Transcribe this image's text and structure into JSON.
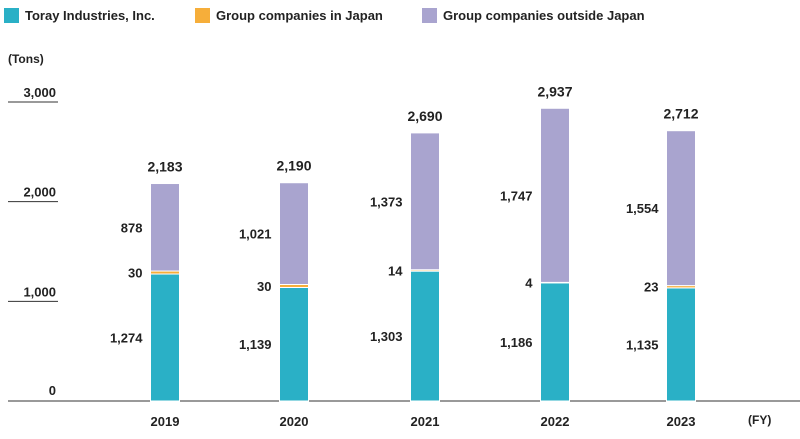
{
  "chart_data": {
    "type": "bar",
    "stacked": true,
    "unit_label": "(Tons)",
    "x_unit_label": "(FY)",
    "categories": [
      "2019",
      "2020",
      "2021",
      "2022",
      "2023"
    ],
    "series": [
      {
        "name": "Toray Industries, Inc.",
        "color": "#2ab0c6",
        "values": [
          1274,
          1139,
          1303,
          1186,
          1135
        ],
        "labels": [
          "1,274",
          "1,139",
          "1,303",
          "1,186",
          "1,135"
        ]
      },
      {
        "name": "Group companies in Japan",
        "color": "#f6ae3a",
        "values": [
          30,
          30,
          14,
          4,
          23
        ],
        "labels": [
          "30",
          "30",
          "14",
          "4",
          "23"
        ]
      },
      {
        "name": "Group companies outside Japan",
        "color": "#a9a4cf",
        "values": [
          878,
          1021,
          1373,
          1747,
          1554
        ],
        "labels": [
          "878",
          "1,021",
          "1,373",
          "1,747",
          "1,554"
        ]
      }
    ],
    "totals": [
      2183,
      2190,
      2690,
      2937,
      2712
    ],
    "total_labels": [
      "2,183",
      "2,190",
      "2,690",
      "2,937",
      "2,712"
    ],
    "yticks": [
      0,
      1000,
      2000,
      3000
    ],
    "ytick_labels": [
      "0",
      "1,000",
      "2,000",
      "3,000"
    ],
    "ylim": [
      0,
      3000
    ],
    "legend": "top",
    "grid": false
  }
}
